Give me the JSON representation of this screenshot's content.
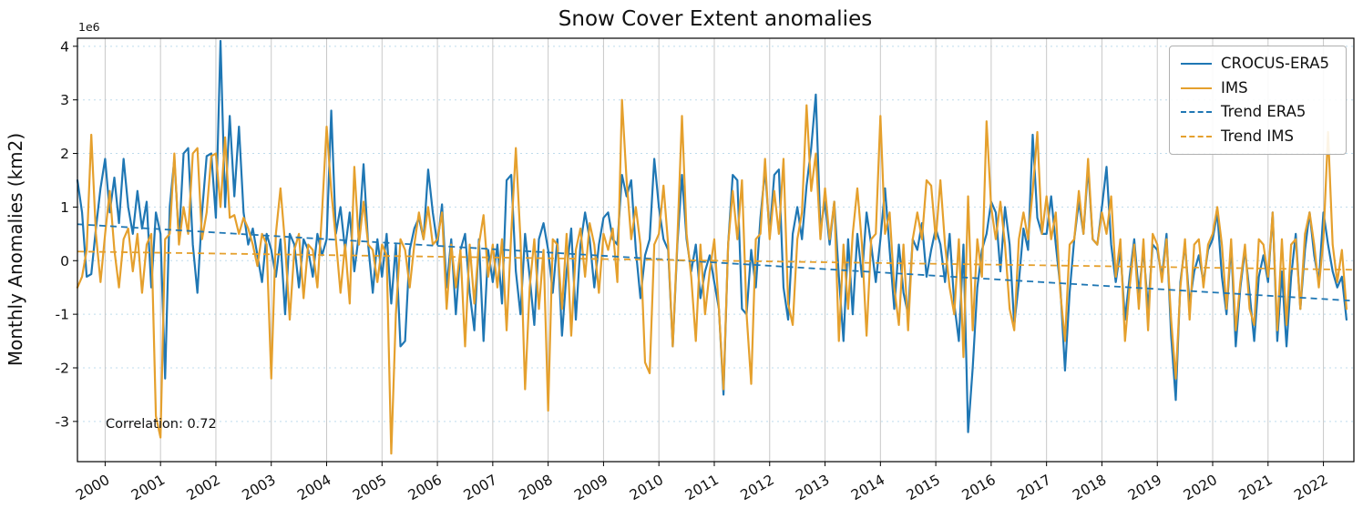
{
  "chart_data": {
    "type": "line",
    "title": "Snow Cover Extent anomalies",
    "ylabel": "Monthly Anomalies (km2)",
    "y_offset_label": "1e6",
    "value_unit": "1e6 km2",
    "xlim": [
      1999.5,
      2022.55
    ],
    "ylim": [
      -3.75,
      4.15
    ],
    "x_ticks": [
      2000,
      2001,
      2002,
      2003,
      2004,
      2005,
      2006,
      2007,
      2008,
      2009,
      2010,
      2011,
      2012,
      2013,
      2014,
      2015,
      2016,
      2017,
      2018,
      2019,
      2020,
      2021,
      2022
    ],
    "y_ticks": [
      -3,
      -2,
      -1,
      0,
      1,
      2,
      3,
      4
    ],
    "x_start": 1999.5,
    "x_step": "monthly",
    "grid": {
      "vertical": true,
      "horizontal": true
    },
    "legend": {
      "position": "upper right"
    },
    "annotation": {
      "text": "Correlation: 0.72",
      "x": 2000.0,
      "y": -3.05
    },
    "colors": {
      "era5": "#1f77b4",
      "ims": "#e5a02d",
      "hgrid": "#bfdcec",
      "vgrid": "#c8c8c8",
      "spine": "#000000"
    },
    "series": [
      {
        "name": "CROCUS-ERA5",
        "color": "#1f77b4",
        "style": "solid",
        "values": [
          1.5,
          0.9,
          -0.3,
          -0.25,
          0.6,
          1.35,
          1.9,
          0.9,
          1.55,
          0.7,
          1.9,
          1.0,
          0.5,
          1.3,
          0.6,
          1.1,
          -0.5,
          0.9,
          0.5,
          -2.2,
          1.0,
          1.9,
          0.4,
          2.0,
          2.1,
          0.3,
          -0.6,
          0.9,
          1.95,
          2.0,
          0.8,
          4.1,
          1.0,
          2.7,
          1.2,
          2.5,
          0.9,
          0.3,
          0.6,
          0.1,
          -0.4,
          0.5,
          0.2,
          -0.3,
          0.4,
          -1.0,
          0.5,
          0.3,
          -0.5,
          0.4,
          0.2,
          -0.3,
          0.5,
          0.1,
          0.4,
          2.8,
          0.5,
          1.0,
          0.2,
          0.9,
          -0.2,
          0.5,
          1.8,
          0.3,
          -0.6,
          0.4,
          -0.3,
          0.5,
          -0.8,
          0.3,
          -1.6,
          -1.5,
          0.2,
          0.6,
          0.8,
          0.4,
          1.7,
          0.9,
          0.3,
          1.05,
          -0.5,
          0.4,
          -1.0,
          0.2,
          0.5,
          -0.6,
          -1.3,
          0.4,
          -1.5,
          0.2,
          -0.4,
          0.3,
          -0.8,
          1.5,
          1.6,
          -0.2,
          -1.0,
          0.5,
          -0.3,
          -1.2,
          0.4,
          0.7,
          0.2,
          -0.6,
          0.4,
          -1.4,
          -0.2,
          0.6,
          -1.1,
          0.3,
          0.9,
          0.4,
          -0.5,
          0.3,
          0.8,
          0.9,
          0.4,
          0.3,
          1.6,
          1.2,
          1.5,
          0.2,
          -0.7,
          0.1,
          0.4,
          1.9,
          1.0,
          0.4,
          0.2,
          -1.6,
          0.3,
          1.6,
          0.4,
          -0.2,
          0.3,
          -0.7,
          -0.2,
          0.1,
          -0.4,
          -0.9,
          -2.5,
          0.3,
          1.6,
          1.5,
          -0.9,
          -1.0,
          0.2,
          -0.5,
          0.8,
          1.7,
          0.5,
          1.6,
          1.7,
          -0.5,
          -1.1,
          0.5,
          1.0,
          0.4,
          1.4,
          2.1,
          3.1,
          0.6,
          1.1,
          0.3,
          1.1,
          -0.3,
          -1.5,
          0.4,
          -1.0,
          0.5,
          -0.3,
          0.9,
          0.3,
          -0.4,
          0.4,
          1.35,
          0.2,
          -0.9,
          0.3,
          -0.6,
          -1.0,
          0.4,
          0.2,
          0.7,
          -0.3,
          0.2,
          0.6,
          0.3,
          -0.4,
          0.5,
          -0.8,
          -1.5,
          0.3,
          -3.2,
          -2.0,
          -0.5,
          0.2,
          0.5,
          1.1,
          0.9,
          -0.2,
          1.0,
          0.3,
          -1.2,
          -0.4,
          0.6,
          0.2,
          2.35,
          0.8,
          0.5,
          0.5,
          1.2,
          0.3,
          -0.5,
          -2.05,
          -0.6,
          0.4,
          1.1,
          0.5,
          1.75,
          0.4,
          0.3,
          1.0,
          1.75,
          0.3,
          -0.4,
          0.2,
          -1.1,
          -0.3,
          0.4,
          -0.6,
          0.2,
          -0.9,
          0.3,
          0.2,
          -0.3,
          0.5,
          -1.4,
          -2.6,
          -0.4,
          0.3,
          -0.8,
          -0.2,
          0.1,
          -0.4,
          0.2,
          0.4,
          0.9,
          -0.3,
          -1.0,
          0.3,
          -1.6,
          -0.5,
          0.2,
          -0.6,
          -1.5,
          -0.3,
          0.1,
          -0.4,
          0.9,
          -1.5,
          -0.2,
          -1.6,
          -0.3,
          0.5,
          -0.9,
          0.2,
          0.9,
          0.1,
          -0.4,
          0.9,
          0.3,
          -0.2,
          -0.5,
          -0.3,
          -1.1
        ]
      },
      {
        "name": "IMS",
        "color": "#e5a02d",
        "style": "solid",
        "values": [
          -0.5,
          -0.3,
          0.2,
          2.35,
          0.5,
          -0.4,
          0.5,
          1.3,
          0.2,
          -0.5,
          0.4,
          0.6,
          -0.2,
          0.5,
          -0.6,
          0.3,
          0.5,
          -2.9,
          -3.3,
          0.4,
          0.5,
          2.0,
          0.3,
          1.0,
          0.5,
          2.0,
          2.1,
          0.4,
          0.9,
          1.95,
          2.0,
          1.0,
          2.3,
          0.8,
          0.85,
          0.5,
          0.8,
          0.6,
          0.3,
          -0.1,
          0.5,
          0.3,
          -2.2,
          0.5,
          1.35,
          0.3,
          -1.1,
          0.2,
          0.5,
          -0.7,
          0.3,
          0.2,
          -0.5,
          0.9,
          2.5,
          1.3,
          0.4,
          -0.6,
          0.3,
          -0.8,
          1.75,
          0.3,
          1.1,
          0.3,
          0.2,
          -0.4,
          0.3,
          0.1,
          -3.6,
          -1.0,
          0.4,
          0.2,
          -0.5,
          0.3,
          0.9,
          0.4,
          1.0,
          0.3,
          0.4,
          0.9,
          -0.9,
          0.3,
          -0.5,
          0.2,
          -1.6,
          0.3,
          -0.8,
          0.3,
          0.85,
          -0.3,
          0.3,
          -0.5,
          0.4,
          -1.3,
          0.5,
          2.1,
          0.4,
          -2.4,
          -0.5,
          0.4,
          -0.9,
          0.2,
          -2.8,
          0.4,
          0.3,
          -0.9,
          0.5,
          -1.4,
          0.2,
          0.6,
          -0.3,
          0.7,
          0.3,
          -0.6,
          0.5,
          0.2,
          0.6,
          -0.4,
          3.0,
          1.5,
          0.4,
          1.0,
          0.3,
          -1.9,
          -2.1,
          0.3,
          0.5,
          1.4,
          0.3,
          -1.6,
          0.4,
          2.7,
          0.5,
          -0.3,
          -1.5,
          0.3,
          -1.0,
          -0.2,
          0.4,
          -0.9,
          -2.4,
          0.3,
          1.3,
          0.4,
          1.5,
          -1.0,
          -2.3,
          0.4,
          0.5,
          1.9,
          0.4,
          1.3,
          0.5,
          1.9,
          -0.8,
          -1.2,
          0.4,
          0.9,
          2.9,
          1.3,
          2.0,
          0.4,
          1.35,
          0.4,
          1.1,
          -1.5,
          0.3,
          -0.9,
          0.5,
          1.35,
          0.3,
          -1.4,
          0.4,
          0.5,
          2.7,
          0.5,
          0.9,
          -0.5,
          -1.2,
          0.3,
          -1.3,
          0.4,
          0.9,
          0.4,
          1.5,
          1.4,
          0.4,
          1.5,
          0.3,
          -0.5,
          -1.0,
          0.4,
          -1.8,
          1.2,
          -1.3,
          0.4,
          -0.3,
          2.6,
          1.0,
          0.4,
          1.1,
          0.3,
          -0.9,
          -1.3,
          0.4,
          0.9,
          0.4,
          1.3,
          2.4,
          0.5,
          1.2,
          0.4,
          0.9,
          -0.6,
          -1.5,
          0.3,
          0.4,
          1.3,
          0.5,
          1.9,
          0.4,
          0.3,
          0.9,
          0.5,
          1.2,
          -0.3,
          0.4,
          -1.5,
          -0.5,
          0.3,
          -0.9,
          0.4,
          -1.3,
          0.5,
          0.3,
          -0.4,
          0.4,
          -1.1,
          -2.2,
          -0.5,
          0.4,
          -1.1,
          0.3,
          0.4,
          -0.5,
          0.3,
          0.5,
          1.0,
          0.3,
          -0.9,
          0.4,
          -1.3,
          -0.4,
          0.3,
          -0.9,
          -1.2,
          0.4,
          0.3,
          -0.3,
          0.9,
          -1.3,
          0.4,
          -1.2,
          0.3,
          0.4,
          -0.9,
          0.5,
          0.9,
          0.3,
          -0.5,
          0.4,
          2.4,
          0.3,
          -0.4,
          0.2,
          -0.9
        ]
      },
      {
        "name": "Trend ERA5",
        "color": "#1f77b4",
        "style": "dashed",
        "start": 0.68,
        "end": -0.75
      },
      {
        "name": "Trend IMS",
        "color": "#e5a02d",
        "style": "dashed",
        "start": 0.17,
        "end": -0.17
      }
    ]
  }
}
